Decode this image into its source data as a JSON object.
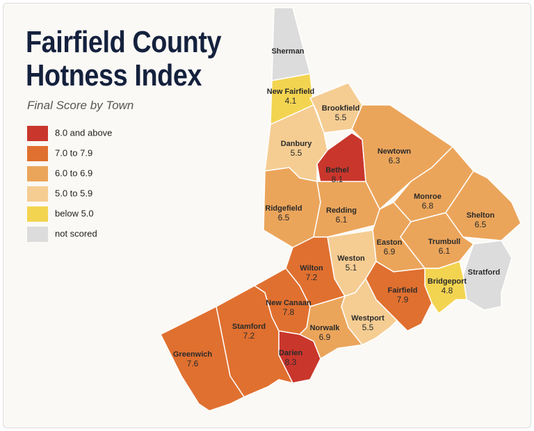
{
  "title": "Fairfield County Hotness Index",
  "subtitle": "Final Score by Town",
  "legend": [
    {
      "label": "8.0 and above",
      "color": "#c9362c"
    },
    {
      "label": "7.0 to 7.9",
      "color": "#e07030"
    },
    {
      "label": "6.0 to 6.9",
      "color": "#eba55b"
    },
    {
      "label": "5.0 to 5.9",
      "color": "#f5cd93"
    },
    {
      "label": "below 5.0",
      "color": "#f3d451"
    },
    {
      "label": "not scored",
      "color": "#dcdcdc"
    }
  ],
  "towns": [
    {
      "name": "Sherman",
      "color": "#dcdcdc"
    },
    {
      "name": "New Fairfield",
      "score": 4.1,
      "color": "#f3d451"
    },
    {
      "name": "Brookfield",
      "score": 5.5,
      "color": "#f5cd93"
    },
    {
      "name": "Danbury",
      "score": 5.5,
      "color": "#f5cd93"
    },
    {
      "name": "Bethel",
      "score": 8.1,
      "color": "#c9362c"
    },
    {
      "name": "Newtown",
      "score": 6.3,
      "color": "#eba55b"
    },
    {
      "name": "Ridgefield",
      "score": 6.5,
      "color": "#eba55b"
    },
    {
      "name": "Redding",
      "score": 6.1,
      "color": "#eba55b"
    },
    {
      "name": "Monroe",
      "score": 6.8,
      "color": "#eba55b"
    },
    {
      "name": "Shelton",
      "score": 6.5,
      "color": "#eba55b"
    },
    {
      "name": "Easton",
      "score": 6.9,
      "color": "#eba55b"
    },
    {
      "name": "Trumbull",
      "score": 6.1,
      "color": "#eba55b"
    },
    {
      "name": "Stratford",
      "color": "#dcdcdc"
    },
    {
      "name": "Bridgeport",
      "score": 4.8,
      "color": "#f3d451"
    },
    {
      "name": "Weston",
      "score": 5.1,
      "color": "#f5cd93"
    },
    {
      "name": "Wilton",
      "score": 7.2,
      "color": "#e07030"
    },
    {
      "name": "Fairfield",
      "score": 7.9,
      "color": "#e07030"
    },
    {
      "name": "Westport",
      "score": 5.5,
      "color": "#f5cd93"
    },
    {
      "name": "Norwalk",
      "score": 6.9,
      "color": "#eba55b"
    },
    {
      "name": "New Canaan",
      "score": 7.8,
      "color": "#e07030"
    },
    {
      "name": "Darien",
      "score": 8.3,
      "color": "#c9362c"
    },
    {
      "name": "Stamford",
      "score": 7.2,
      "color": "#e07030"
    },
    {
      "name": "Greenwich",
      "score": 7.6,
      "color": "#e07030"
    }
  ]
}
